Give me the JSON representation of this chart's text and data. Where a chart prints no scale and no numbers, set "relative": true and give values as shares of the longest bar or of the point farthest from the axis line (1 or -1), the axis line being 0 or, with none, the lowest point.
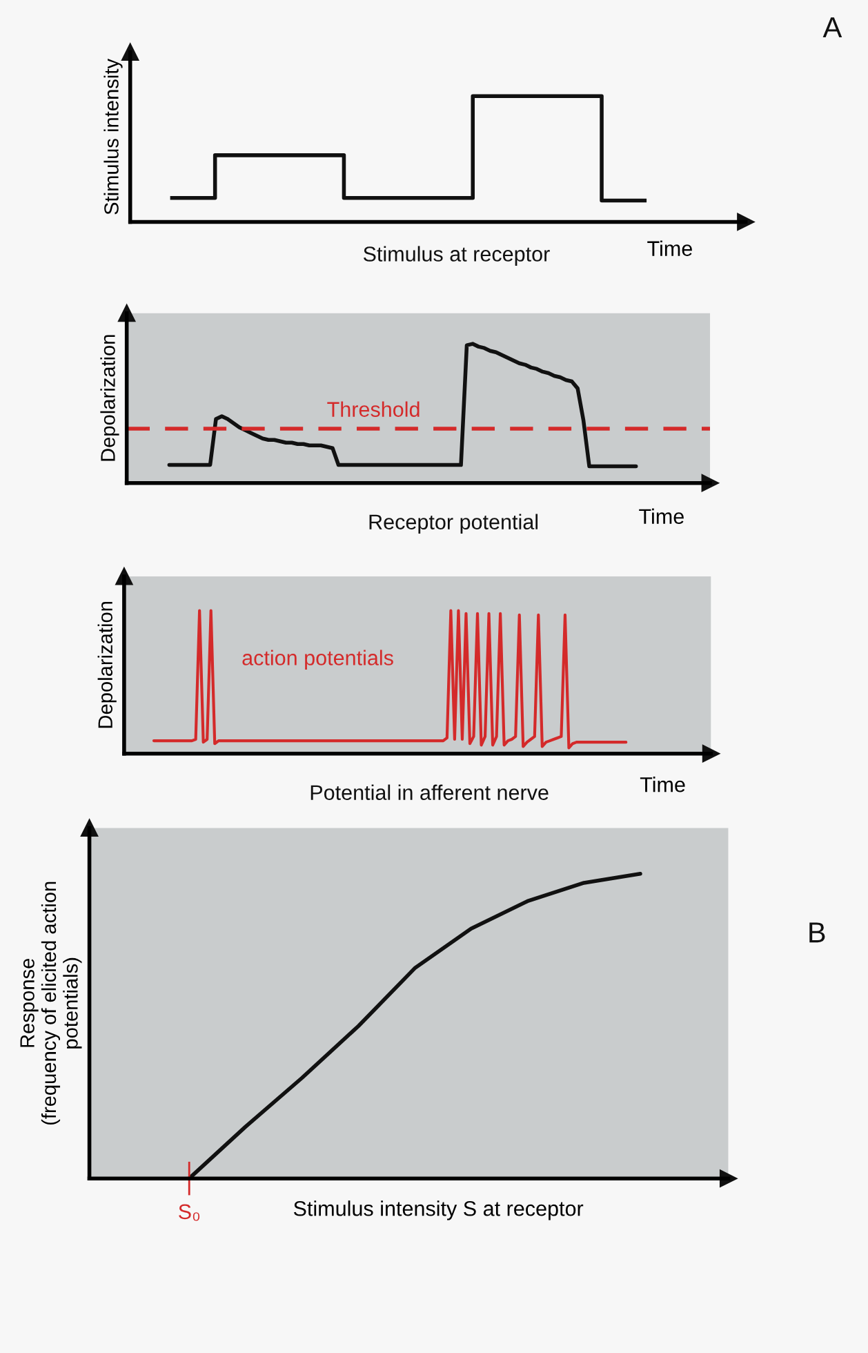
{
  "chart_data": [
    {
      "type": "step",
      "relative": true,
      "xlabel": "Time",
      "ylabel": "Stimulus intensity",
      "annotations": [
        "Stimulus at receptor",
        "A"
      ],
      "categories": [
        null,
        null,
        null,
        null,
        null,
        null,
        null,
        null,
        null,
        null,
        null,
        null,
        null,
        null,
        null,
        null,
        null,
        null,
        null,
        null,
        null,
        null,
        null
      ],
      "series": [
        {
          "color": "#111111",
          "values": [
            0.19,
            0.19,
            0.53,
            0.53,
            0.53,
            0.53,
            0.53,
            0.53,
            0.19,
            0.19,
            0.19,
            0.19,
            0.19,
            0.19,
            1.0,
            1.0,
            1.0,
            1.0,
            1.0,
            1.0,
            0.17,
            0.17,
            0.17
          ]
        }
      ]
    },
    {
      "type": "line",
      "relative": true,
      "xlabel": "Time",
      "ylabel": "Depolarization",
      "annotations": [
        "Receptor potential"
      ],
      "ref_lines": [
        {
          "axis": "y",
          "value": 0.39,
          "label": "Threshold",
          "color": "#d42a2a",
          "line_style": "dashed"
        }
      ],
      "categories": [
        null,
        null,
        null,
        null,
        null,
        null,
        null,
        null,
        null,
        null,
        null,
        null,
        null,
        null,
        null,
        null,
        null,
        null,
        null,
        null,
        null,
        null,
        null,
        null,
        null,
        null,
        null,
        null,
        null,
        null,
        null,
        null,
        null,
        null,
        null,
        null,
        null,
        null,
        null,
        null,
        null,
        null,
        null,
        null,
        null,
        null,
        null,
        null,
        null,
        null,
        null,
        null,
        null,
        null,
        null,
        null,
        null,
        null,
        null,
        null,
        null,
        null,
        null,
        null,
        null,
        null,
        null,
        null,
        null,
        null,
        null,
        null,
        null,
        null,
        null,
        null,
        null,
        null,
        null,
        null,
        null
      ],
      "series": [
        {
          "color": "#111111",
          "values": [
            0.13,
            0.13,
            0.13,
            0.13,
            0.13,
            0.13,
            0.13,
            0.13,
            0.46,
            0.48,
            0.46,
            0.43,
            0.4,
            0.38,
            0.36,
            0.34,
            0.32,
            0.31,
            0.31,
            0.3,
            0.29,
            0.29,
            0.28,
            0.28,
            0.27,
            0.27,
            0.27,
            0.26,
            0.25,
            0.13,
            0.13,
            0.13,
            0.13,
            0.13,
            0.13,
            0.13,
            0.13,
            0.13,
            0.13,
            0.13,
            0.13,
            0.13,
            0.13,
            0.13,
            0.13,
            0.13,
            0.13,
            0.13,
            0.13,
            0.13,
            0.13,
            0.99,
            1.0,
            0.98,
            0.97,
            0.95,
            0.94,
            0.92,
            0.9,
            0.88,
            0.86,
            0.85,
            0.83,
            0.82,
            0.8,
            0.79,
            0.77,
            0.76,
            0.74,
            0.73,
            0.68,
            0.45,
            0.12,
            0.12,
            0.12,
            0.12,
            0.12,
            0.12,
            0.12,
            0.12,
            0.12
          ]
        }
      ]
    },
    {
      "type": "line",
      "relative": true,
      "xlabel": "Time",
      "ylabel": "Depolarization",
      "annotations": [
        "action potentials",
        "Potential in afferent nerve"
      ],
      "categories": [
        null,
        null,
        null,
        null,
        null,
        null,
        null,
        null,
        null,
        null,
        null,
        null,
        null,
        null,
        null,
        null,
        null,
        null,
        null,
        null,
        null,
        null,
        null,
        null,
        null,
        null,
        null,
        null,
        null,
        null,
        null,
        null,
        null,
        null,
        null,
        null,
        null,
        null,
        null,
        null,
        null,
        null,
        null,
        null,
        null,
        null,
        null,
        null,
        null,
        null,
        null,
        null,
        null,
        null,
        null,
        null,
        null,
        null,
        null,
        null,
        null,
        null,
        null,
        null,
        null,
        null,
        null,
        null,
        null,
        null,
        null,
        null,
        null,
        null,
        null,
        null,
        null,
        null,
        null,
        null,
        null,
        null,
        null,
        null,
        null,
        null,
        null,
        null,
        null,
        null,
        null,
        null,
        null,
        null,
        null,
        null,
        null,
        null,
        null,
        null,
        null,
        null,
        null,
        null,
        null,
        null,
        null,
        null,
        null,
        null,
        null,
        null,
        null,
        null,
        null,
        null,
        null,
        null,
        null,
        null,
        null,
        null,
        null,
        null,
        null
      ],
      "series": [
        {
          "color": "#d42a2a",
          "values": [
            0.09,
            0.09,
            0.09,
            0.09,
            0.09,
            0.09,
            0.09,
            0.09,
            0.09,
            0.09,
            0.09,
            0.1,
            1.0,
            0.08,
            0.1,
            1.0,
            0.07,
            0.09,
            0.09,
            0.09,
            0.09,
            0.09,
            0.09,
            0.09,
            0.09,
            0.09,
            0.09,
            0.09,
            0.09,
            0.09,
            0.09,
            0.09,
            0.09,
            0.09,
            0.09,
            0.09,
            0.09,
            0.09,
            0.09,
            0.09,
            0.09,
            0.09,
            0.09,
            0.09,
            0.09,
            0.09,
            0.09,
            0.09,
            0.09,
            0.09,
            0.09,
            0.09,
            0.09,
            0.09,
            0.09,
            0.09,
            0.09,
            0.09,
            0.09,
            0.09,
            0.09,
            0.09,
            0.09,
            0.09,
            0.09,
            0.09,
            0.09,
            0.09,
            0.09,
            0.09,
            0.09,
            0.09,
            0.09,
            0.09,
            0.09,
            0.09,
            0.09,
            0.11,
            1.0,
            0.1,
            1.0,
            0.1,
            0.98,
            0.07,
            0.12,
            0.98,
            0.06,
            0.12,
            0.98,
            0.06,
            0.12,
            0.98,
            0.06,
            0.09,
            0.1,
            0.12,
            0.97,
            0.05,
            0.08,
            0.1,
            0.12,
            0.97,
            0.05,
            0.08,
            0.09,
            0.1,
            0.11,
            0.12,
            0.97,
            0.04,
            0.07,
            0.08,
            0.08,
            0.08,
            0.08,
            0.08,
            0.08,
            0.08,
            0.08,
            0.08,
            0.08,
            0.08,
            0.08,
            0.08,
            0.08
          ]
        }
      ]
    },
    {
      "type": "line",
      "relative": true,
      "xlabel": "Stimulus intensity S at receptor",
      "ylabel": "Response\n(frequency of elicited action\npotentials)",
      "annotations": [
        "B",
        "S₀"
      ],
      "categories": [
        null,
        null,
        null,
        null,
        null,
        null,
        null,
        null,
        null
      ],
      "series": [
        {
          "color": "#111111",
          "values": [
            0,
            0.17,
            0.33,
            0.5,
            0.69,
            0.82,
            0.91,
            0.97,
            1.0
          ]
        }
      ]
    }
  ]
}
